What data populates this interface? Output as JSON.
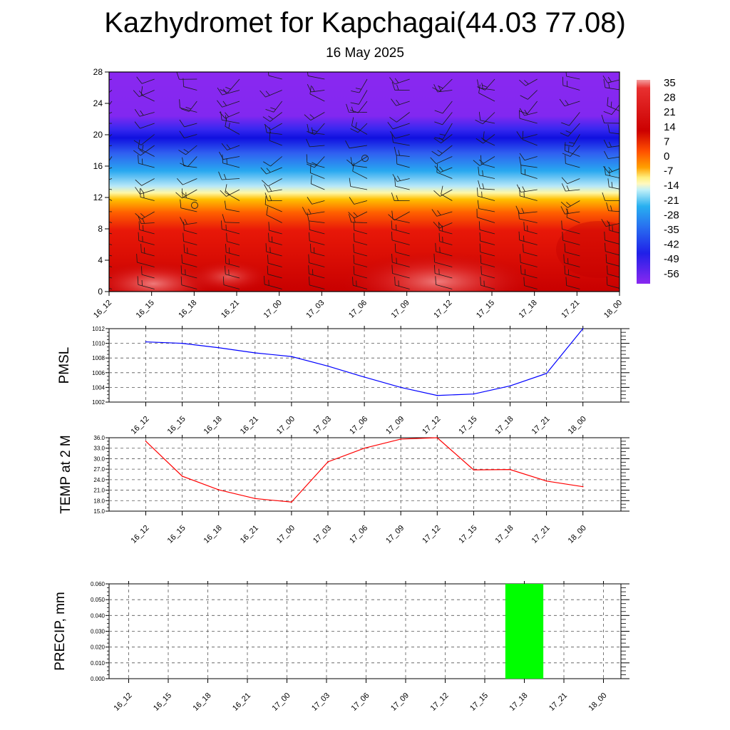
{
  "title": "Kazhydromet for Kapchagai(44.03 77.08)",
  "subtitle": "16 May 2025",
  "time_labels": [
    "16_12",
    "16_15",
    "16_18",
    "16_21",
    "17_00",
    "17_03",
    "17_06",
    "17_09",
    "17_12",
    "17_15",
    "17_18",
    "17_21",
    "18_00"
  ],
  "chart_data": [
    {
      "type": "heatmap",
      "title": "",
      "xlabel": "",
      "ylabel": "",
      "categories": [
        "16_12",
        "16_15",
        "16_18",
        "16_21",
        "17_00",
        "17_03",
        "17_06",
        "17_09",
        "17_12",
        "17_15",
        "17_18",
        "17_21",
        "18_00"
      ],
      "y_ticks": [
        0,
        4,
        8,
        12,
        16,
        20,
        24,
        28
      ],
      "ylim": [
        0,
        28
      ],
      "colorbar_ticks": [
        35,
        28,
        21,
        14,
        7,
        0,
        -7,
        -14,
        -21,
        -28,
        -35,
        -42,
        -49,
        -56
      ],
      "colorbar_range": [
        -60,
        38
      ],
      "grid": false
    },
    {
      "type": "line",
      "ylabel": "PMSL",
      "categories": [
        "16_12",
        "16_15",
        "16_18",
        "16_21",
        "17_00",
        "17_03",
        "17_06",
        "17_09",
        "17_12",
        "17_15",
        "17_18",
        "17_21",
        "18_00"
      ],
      "values": [
        1010.2,
        1010.0,
        1009.4,
        1008.7,
        1008.2,
        1006.9,
        1005.4,
        1004.0,
        1002.9,
        1003.1,
        1004.2,
        1005.9,
        1012.0
      ],
      "y_ticks": [
        1002,
        1004,
        1006,
        1008,
        1010,
        1012
      ],
      "ylim": [
        1002,
        1012
      ],
      "color": "#0000ff",
      "grid": true
    },
    {
      "type": "line",
      "ylabel": "TEMP at 2 M",
      "categories": [
        "16_12",
        "16_15",
        "16_18",
        "16_21",
        "17_00",
        "17_03",
        "17_06",
        "17_09",
        "17_12",
        "17_15",
        "17_18",
        "17_21",
        "18_00"
      ],
      "values": [
        35.0,
        25.0,
        21.1,
        18.6,
        17.6,
        29.1,
        33.0,
        35.6,
        36.0,
        26.8,
        26.9,
        23.6,
        22.0
      ],
      "y_ticks": [
        "15.0",
        "18.0",
        "21.0",
        "24.0",
        "27.0",
        "30.0",
        "33.0",
        "36.0"
      ],
      "ylim": [
        15,
        36
      ],
      "color": "#ff0000",
      "grid": true
    },
    {
      "type": "bar",
      "ylabel": "PRECIP, mm",
      "categories": [
        "16_12",
        "16_15",
        "16_18",
        "16_21",
        "17_00",
        "17_03",
        "17_06",
        "17_09",
        "17_12",
        "17_15",
        "17_18",
        "17_21",
        "18_00"
      ],
      "values": [
        0,
        0,
        0,
        0,
        0,
        0,
        0,
        0,
        0,
        0,
        0.06,
        0,
        0
      ],
      "y_ticks": [
        "0.000",
        "0.010",
        "0.020",
        "0.030",
        "0.040",
        "0.050",
        "0.060"
      ],
      "ylim": [
        0,
        0.06
      ],
      "color": "#00ff00",
      "grid": true
    }
  ]
}
